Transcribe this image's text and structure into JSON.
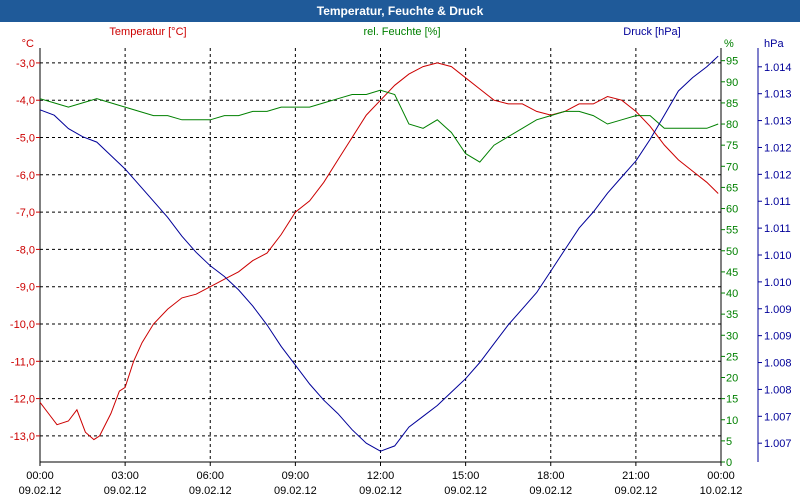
{
  "window": {
    "title": "Temperatur, Feuchte & Druck"
  },
  "chart_data": {
    "type": "line",
    "title": "Temperatur, Feuchte & Druck",
    "x_ticks": [
      {
        "time": "00:00",
        "date": "09.02.12"
      },
      {
        "time": "03:00",
        "date": "09.02.12"
      },
      {
        "time": "06:00",
        "date": "09.02.12"
      },
      {
        "time": "09:00",
        "date": "09.02.12"
      },
      {
        "time": "12:00",
        "date": "09.02.12"
      },
      {
        "time": "15:00",
        "date": "09.02.12"
      },
      {
        "time": "18:00",
        "date": "09.02.12"
      },
      {
        "time": "21:00",
        "date": "09.02.12"
      },
      {
        "time": "00:00",
        "date": "10.02.12"
      }
    ],
    "xlim": [
      0,
      24
    ],
    "axes": {
      "temperature": {
        "label": "Temperatur [°C]",
        "unit": "°C",
        "color": "#cc0000",
        "ylim": [
          -13.7,
          -2.6
        ],
        "ticks": [
          "-3,0",
          "-4,0",
          "-5,0",
          "-6,0",
          "-7,0",
          "-8,0",
          "-9,0",
          "-10,0",
          "-11,0",
          "-12,0",
          "-13,0"
        ],
        "tick_values": [
          -3,
          -4,
          -5,
          -6,
          -7,
          -8,
          -9,
          -10,
          -11,
          -12,
          -13
        ]
      },
      "humidity": {
        "label": "rel. Feuchte [%]",
        "unit": "%",
        "color": "#008000",
        "ylim": [
          0,
          98
        ],
        "ticks": [
          "95",
          "90",
          "85",
          "80",
          "75",
          "70",
          "65",
          "60",
          "55",
          "50",
          "45",
          "40",
          "35",
          "30",
          "25",
          "20",
          "15",
          "10",
          "5",
          "0"
        ],
        "tick_values": [
          95,
          90,
          85,
          80,
          75,
          70,
          65,
          60,
          55,
          50,
          45,
          40,
          35,
          30,
          25,
          20,
          15,
          10,
          5,
          0
        ]
      },
      "pressure": {
        "label": "Druck [hPa]",
        "unit": "hPa",
        "color": "#000099",
        "ticks": [
          "1.014",
          "1.013",
          "1.013",
          "1.012",
          "1.012",
          "1.011",
          "1.011",
          "1.010",
          "1.010",
          "1.009",
          "1.009",
          "1.008",
          "1.008",
          "1.007",
          "1.007"
        ],
        "tick_positions": [
          1.014,
          1.0135,
          1.013,
          1.0125,
          1.012,
          1.0115,
          1.011,
          1.0105,
          1.01,
          1.0095,
          1.009,
          1.0085,
          1.008,
          1.0075,
          1.007
        ],
        "ylim": [
          1.00665,
          1.01435
        ]
      }
    },
    "series": [
      {
        "name": "Temperatur",
        "axis": "temperature",
        "color": "#cc0000",
        "x": [
          0,
          0.3,
          0.6,
          1,
          1.3,
          1.6,
          1.9,
          2.1,
          2.5,
          2.8,
          3,
          3.3,
          3.6,
          4,
          4.5,
          5,
          5.5,
          6,
          6.5,
          7,
          7.5,
          8,
          8.5,
          9,
          9.5,
          10,
          10.5,
          11,
          11.5,
          12,
          12.5,
          13,
          13.5,
          14,
          14.5,
          15,
          15.5,
          16,
          16.5,
          17,
          17.5,
          18,
          18.5,
          19,
          19.5,
          20,
          20.5,
          21,
          21.5,
          22,
          22.5,
          23,
          23.5,
          23.9
        ],
        "values": [
          -12.1,
          -12.4,
          -12.7,
          -12.6,
          -12.3,
          -12.9,
          -13.1,
          -13.0,
          -12.4,
          -11.8,
          -11.7,
          -11.0,
          -10.5,
          -10.0,
          -9.6,
          -9.3,
          -9.2,
          -9.0,
          -8.8,
          -8.6,
          -8.3,
          -8.1,
          -7.6,
          -7.0,
          -6.7,
          -6.2,
          -5.6,
          -5.0,
          -4.4,
          -4.0,
          -3.6,
          -3.3,
          -3.1,
          -3.0,
          -3.1,
          -3.4,
          -3.7,
          -4.0,
          -4.1,
          -4.1,
          -4.3,
          -4.4,
          -4.3,
          -4.1,
          -4.1,
          -3.9,
          -4.0,
          -4.3,
          -4.7,
          -5.2,
          -5.6,
          -5.9,
          -6.2,
          -6.5
        ]
      },
      {
        "name": "rel. Feuchte",
        "axis": "humidity",
        "color": "#008000",
        "x": [
          0,
          0.5,
          1,
          1.5,
          2,
          2.5,
          3,
          3.5,
          4,
          4.5,
          5,
          5.5,
          6,
          6.5,
          7,
          7.5,
          8,
          8.5,
          9,
          9.5,
          10,
          10.5,
          11,
          11.5,
          12,
          12.5,
          13,
          13.5,
          14,
          14.5,
          15,
          15.5,
          16,
          16.5,
          17,
          17.5,
          18,
          18.5,
          19,
          19.5,
          20,
          20.5,
          21,
          21.5,
          22,
          22.5,
          23,
          23.5,
          23.9
        ],
        "values": [
          86,
          85,
          84,
          85,
          86,
          85,
          84,
          83,
          82,
          82,
          81,
          81,
          81,
          82,
          82,
          83,
          83,
          84,
          84,
          84,
          85,
          86,
          87,
          87,
          88,
          87,
          80,
          79,
          81,
          78,
          73,
          71,
          75,
          77,
          79,
          81,
          82,
          83,
          83,
          82,
          80,
          81,
          82,
          82,
          79,
          79,
          79,
          79,
          80
        ]
      },
      {
        "name": "Druck",
        "axis": "pressure",
        "color": "#000099",
        "x": [
          0,
          0.5,
          1,
          1.5,
          2,
          2.5,
          3,
          3.5,
          4,
          4.5,
          5,
          5.5,
          6,
          6.5,
          7,
          7.5,
          8,
          8.5,
          9,
          9.5,
          10,
          10.5,
          11,
          11.5,
          12,
          12.5,
          13,
          13.5,
          14,
          14.5,
          15,
          15.5,
          16,
          16.5,
          17,
          17.5,
          18,
          18.5,
          19,
          19.5,
          20,
          20.5,
          21,
          21.5,
          22,
          22.5,
          23,
          23.5,
          23.9
        ],
        "values": [
          1.0132,
          1.0131,
          1.01285,
          1.0127,
          1.0126,
          1.01235,
          1.0121,
          1.0118,
          1.0115,
          1.0112,
          1.01085,
          1.01055,
          1.0103,
          1.0101,
          1.00985,
          1.00955,
          1.0092,
          1.0088,
          1.00845,
          1.0081,
          1.0078,
          1.00755,
          1.00725,
          1.007,
          1.00685,
          1.00695,
          1.0073,
          1.0075,
          1.0077,
          1.00795,
          1.0082,
          1.0085,
          1.00885,
          1.0092,
          1.0095,
          1.0098,
          1.0102,
          1.0106,
          1.011,
          1.0113,
          1.01165,
          1.01195,
          1.01225,
          1.01265,
          1.0131,
          1.01355,
          1.0138,
          1.014,
          1.0142
        ]
      }
    ]
  }
}
